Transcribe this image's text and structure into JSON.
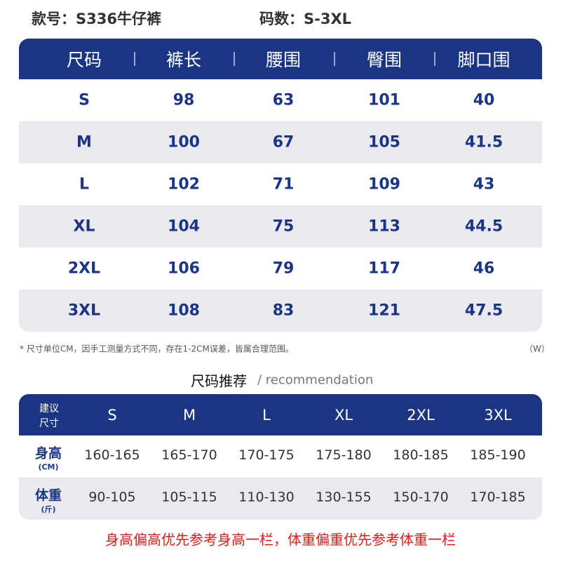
{
  "header": {
    "style_label": "款号：S336牛仔裤",
    "size_label": "码数：S-3XL"
  },
  "size_table": {
    "columns": [
      "尺码",
      "裤长",
      "腰围",
      "臀围",
      "脚口围"
    ],
    "rows": [
      [
        "S",
        "98",
        "63",
        "101",
        "40"
      ],
      [
        "M",
        "100",
        "67",
        "105",
        "41.5"
      ],
      [
        "L",
        "102",
        "71",
        "109",
        "43"
      ],
      [
        "XL",
        "104",
        "75",
        "113",
        "44.5"
      ],
      [
        "2XL",
        "106",
        "79",
        "117",
        "46"
      ],
      [
        "3XL",
        "108",
        "83",
        "121",
        "47.5"
      ]
    ]
  },
  "note": "* 尺寸单位CM，因手工测量方式不同，存在1-2CM误差，皆属合理范围。",
  "note_unit": "（W）",
  "recommendation": {
    "title": "尺码推荐",
    "subtitle": "/ recommendation",
    "corner": [
      "建议",
      "尺寸"
    ],
    "sizes": [
      "S",
      "M",
      "L",
      "XL",
      "2XL",
      "3XL"
    ],
    "rows": [
      {
        "label": "身高",
        "unit": "(CM)",
        "values": [
          "160-165",
          "165-170",
          "170-175",
          "175-180",
          "180-185",
          "185-190"
        ]
      },
      {
        "label": "体重",
        "unit": "(斤)",
        "values": [
          "90-105",
          "105-115",
          "110-130",
          "130-155",
          "150-170",
          "170-185"
        ]
      }
    ]
  },
  "footer": "身高偏高优先参考身高一栏，体重偏重优先参考体重一栏"
}
